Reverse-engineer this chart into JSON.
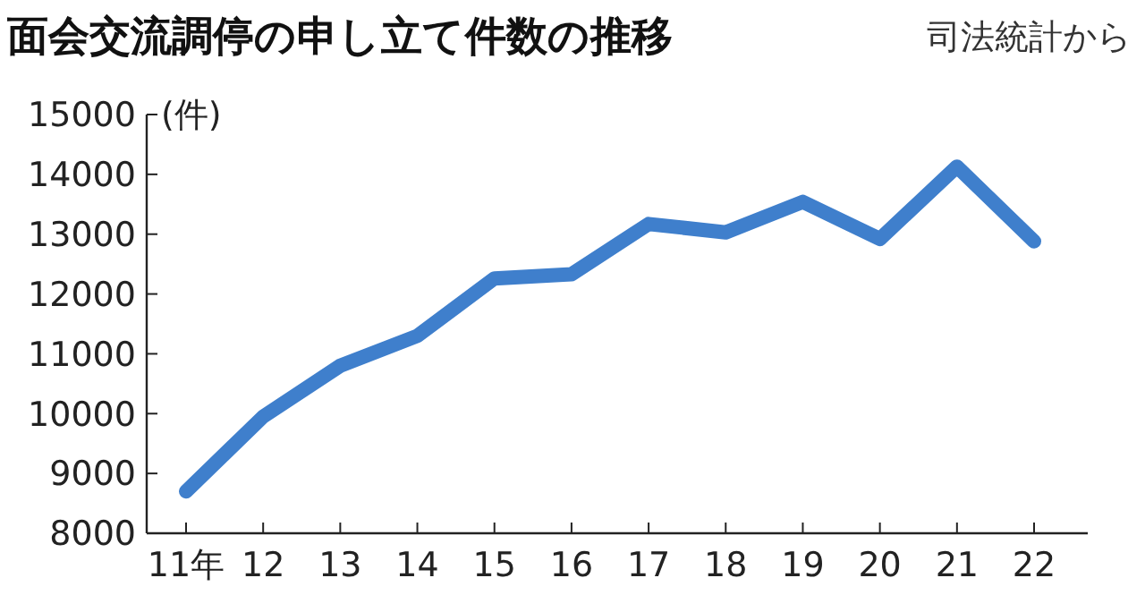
{
  "chart_data": {
    "type": "line",
    "title": "面会交流調停の申し立て件数の推移",
    "ylabel": "(件)",
    "annotations": [
      "司法統計から"
    ],
    "categories": [
      "11年",
      "12",
      "13",
      "14",
      "15",
      "16",
      "17",
      "18",
      "19",
      "20",
      "21",
      "22"
    ],
    "series": [
      {
        "color": "#3f7fcc",
        "values": [
          8700,
          9950,
          10800,
          11300,
          12260,
          12330,
          13170,
          13030,
          13540,
          12920,
          14130,
          12880
        ]
      }
    ],
    "ylim": [
      8000,
      15000
    ],
    "yticks": [
      8000,
      9000,
      10000,
      11000,
      12000,
      13000,
      14000,
      15000
    ],
    "grid": false,
    "marker": "none",
    "line_style": "solid"
  }
}
